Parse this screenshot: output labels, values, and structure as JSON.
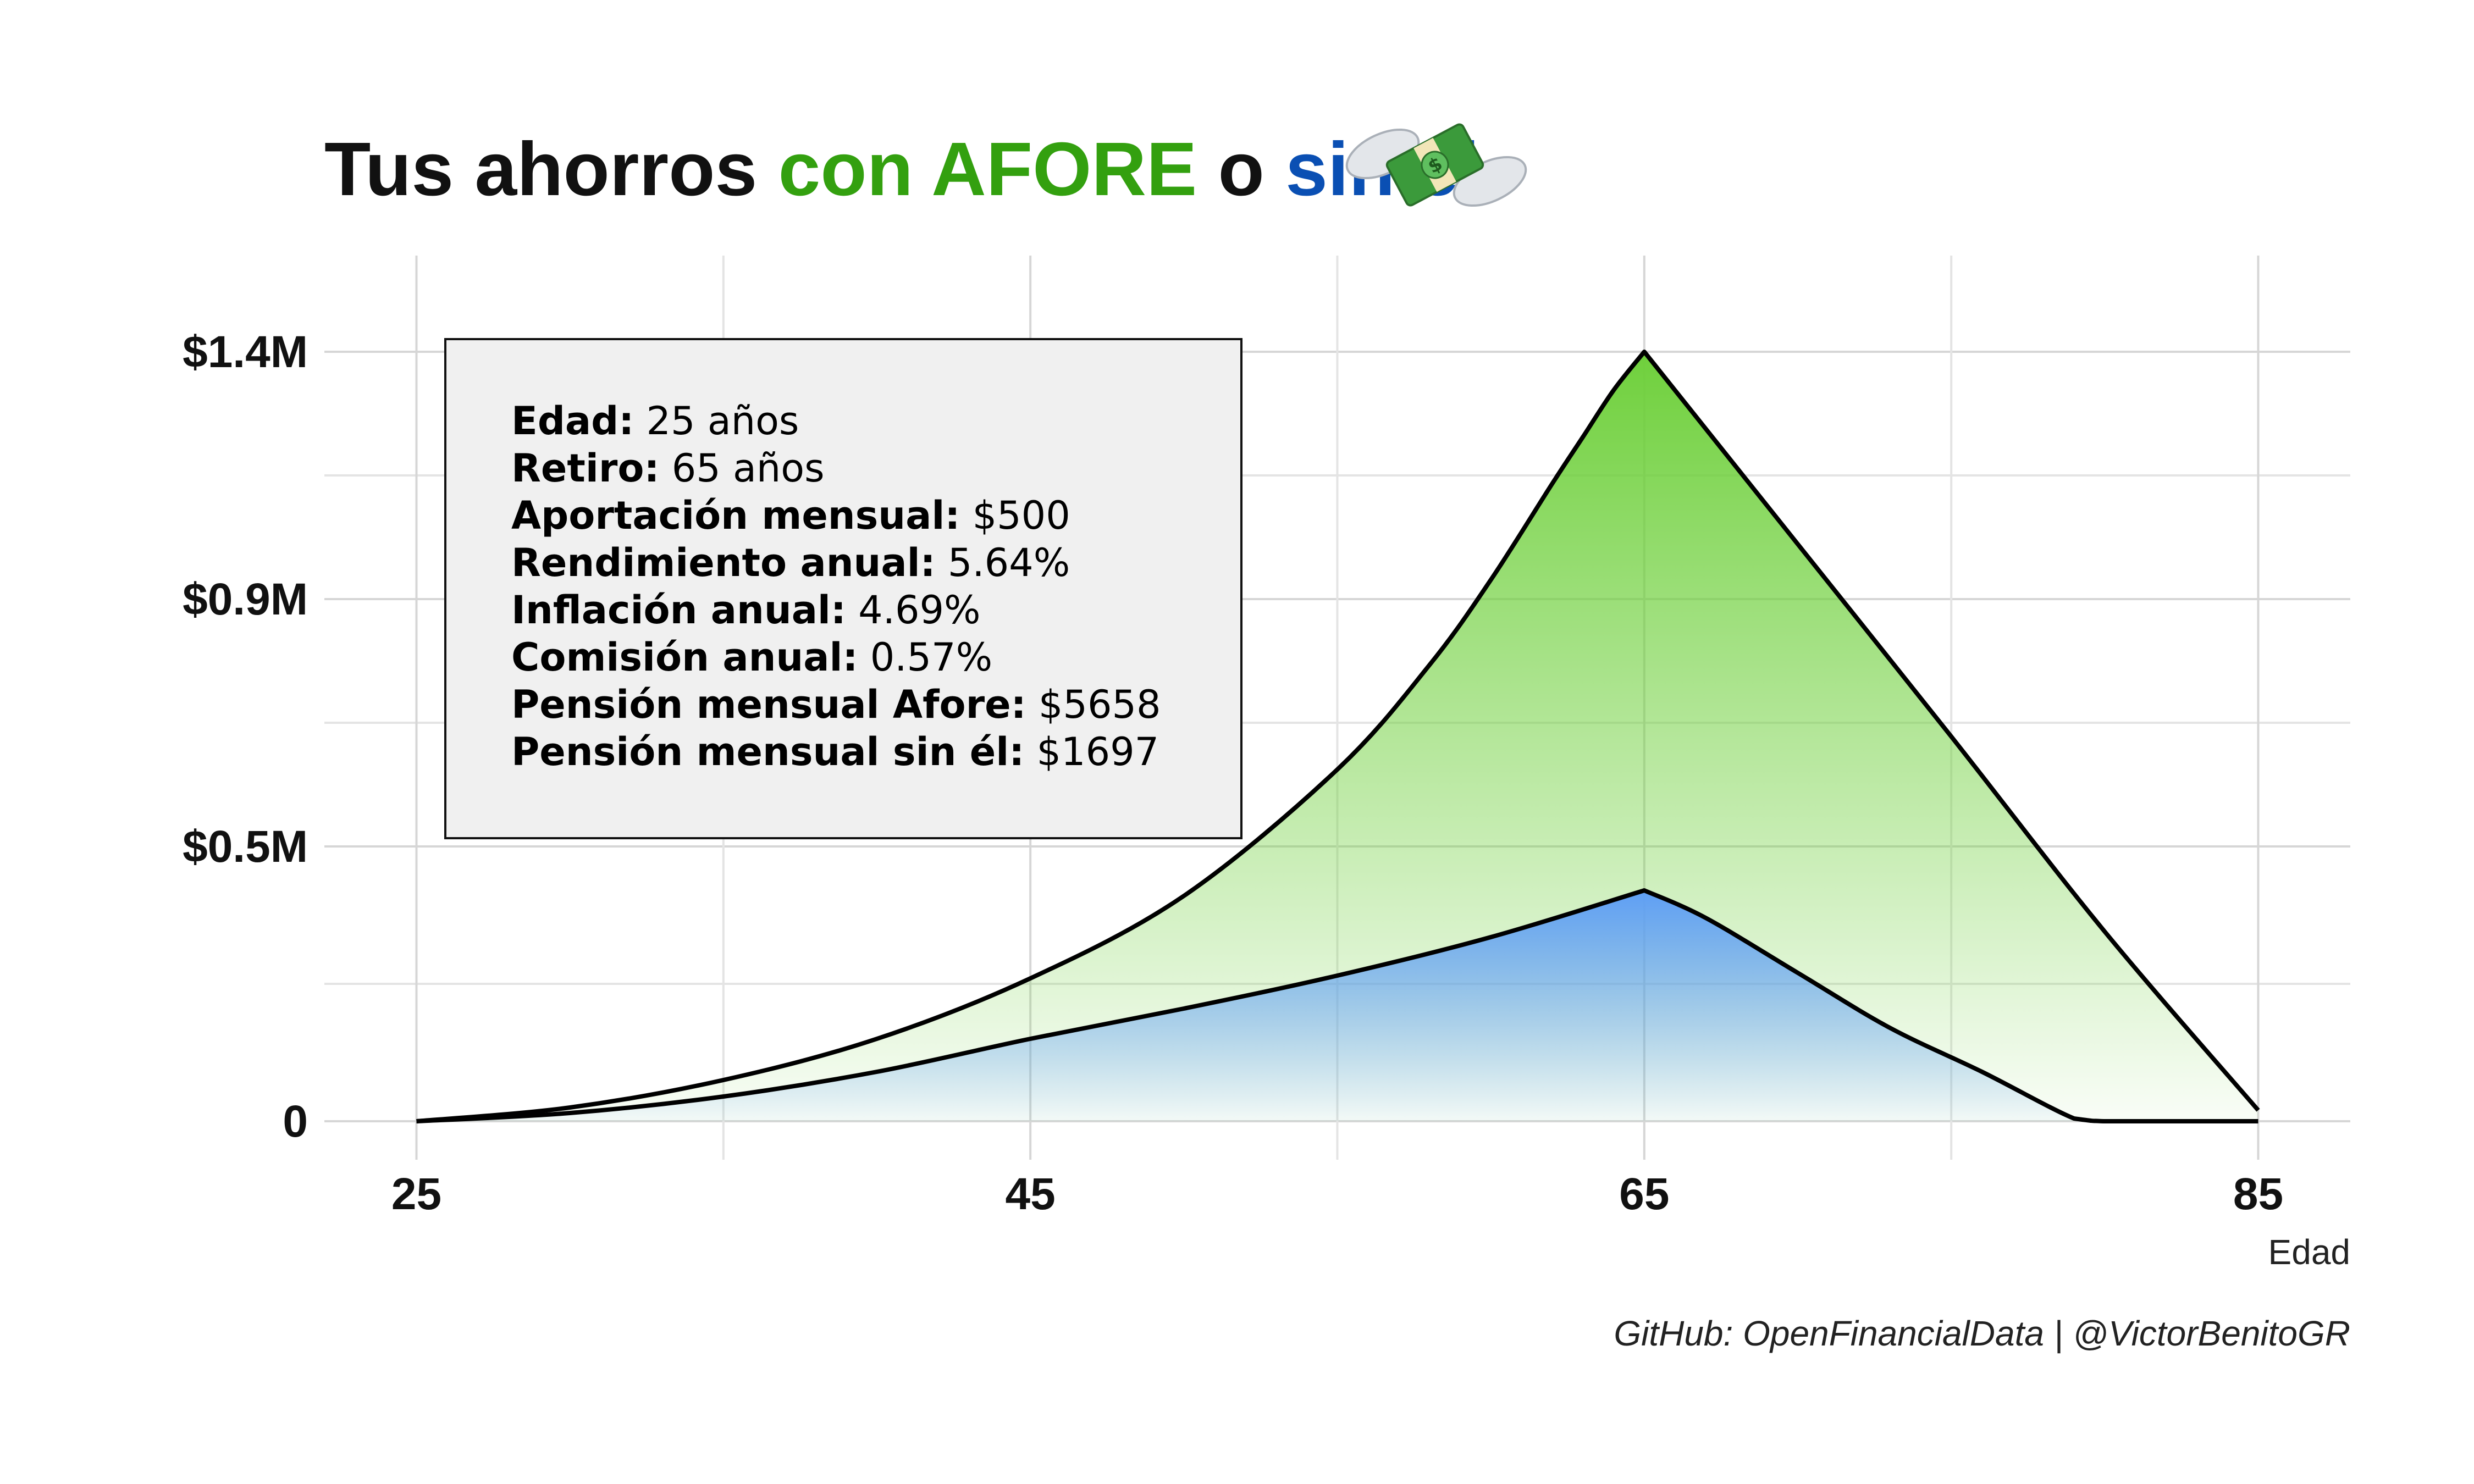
{
  "title": {
    "part1": "Tus ahorros ",
    "part2": "con AFORE",
    "part3": " o ",
    "part4": "sin él",
    "emoji": "money-with-wings-icon",
    "color_afore": "#33a00f",
    "color_sin": "#0a4fb3"
  },
  "info_box": {
    "rows": [
      {
        "label": "Edad:",
        "value": " 25 años"
      },
      {
        "label": "Retiro:",
        "value": " 65 años"
      },
      {
        "label": "Aportación mensual:",
        "value": " $500"
      },
      {
        "label": "Rendimiento anual:",
        "value": " 5.64%"
      },
      {
        "label": "Inflación anual:",
        "value": " 4.69%"
      },
      {
        "label": "Comisión anual:",
        "value": " 0.57%"
      },
      {
        "label": "Pensión mensual Afore:",
        "value": " $5658"
      },
      {
        "label": "Pensión mensual sin él:",
        "value": " $1697"
      }
    ]
  },
  "caption": "GitHub: OpenFinancialData | @VictorBenitoGR",
  "chart_data": {
    "type": "area",
    "xlabel": "Edad",
    "ylabel": "",
    "xlim": [
      22,
      88
    ],
    "ylim": [
      0,
      1500000
    ],
    "x_ticks": [
      25,
      45,
      65,
      85
    ],
    "x_tick_labels": [
      "25",
      "45",
      "65",
      "85"
    ],
    "y_ticks": [
      0,
      500000,
      950000,
      1400000
    ],
    "y_tick_labels": [
      "0",
      "$0.5M",
      "$0.9M",
      "$1.4M"
    ],
    "grid": true,
    "colors": {
      "afore": "#6fd03c",
      "sin": "#5f9ff5"
    },
    "series": [
      {
        "key": "afore",
        "x": [
          25,
          30,
          35,
          40,
          45,
          50,
          55,
          58,
          60,
          62,
          63,
          64,
          65,
          70,
          75,
          80,
          85
        ],
        "values": [
          0,
          25000,
          75000,
          150000,
          260000,
          410000,
          640000,
          830000,
          985000,
          1160000,
          1245000,
          1330000,
          1400000,
          1050000,
          700000,
          345000,
          20000
        ]
      },
      {
        "key": "sin",
        "x": [
          25,
          30,
          35,
          40,
          45,
          50,
          55,
          60,
          65,
          67,
          70,
          73,
          76,
          79,
          80,
          82,
          85
        ],
        "values": [
          0,
          15000,
          45000,
          90000,
          150000,
          205000,
          265000,
          335000,
          420000,
          370000,
          270000,
          170000,
          90000,
          5000,
          0,
          0,
          0
        ]
      }
    ]
  }
}
